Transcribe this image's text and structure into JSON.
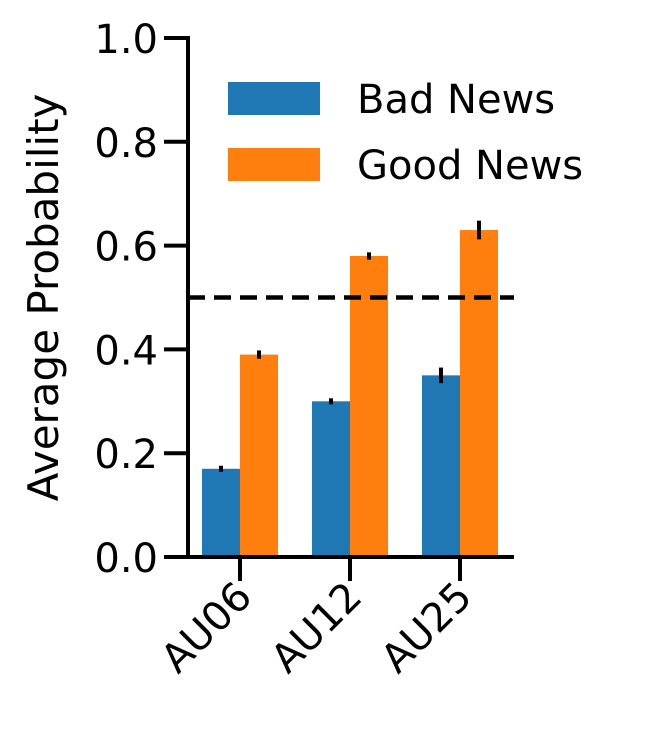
{
  "chart_data": {
    "type": "bar",
    "ylabel": "Average Probability",
    "xlabel": "",
    "title": "",
    "ylim": [
      0,
      1.0
    ],
    "yticks": [
      "0.0",
      "0.2",
      "0.4",
      "0.6",
      "0.8",
      "1.0"
    ],
    "categories": [
      "AU06",
      "AU12",
      "AU25"
    ],
    "series": [
      {
        "name": "Bad News",
        "color": "#1f77b4",
        "values": [
          0.17,
          0.3,
          0.35
        ],
        "errors": [
          0.003,
          0.005,
          0.015
        ]
      },
      {
        "name": "Good News",
        "color": "#ff7f0e",
        "values": [
          0.39,
          0.58,
          0.63
        ],
        "errors": [
          0.008,
          0.007,
          0.018
        ]
      }
    ],
    "reference_line": {
      "y": 0.5,
      "style": "dashed",
      "color": "#000000"
    },
    "legend": {
      "placement": "top-right"
    },
    "grid": false
  }
}
